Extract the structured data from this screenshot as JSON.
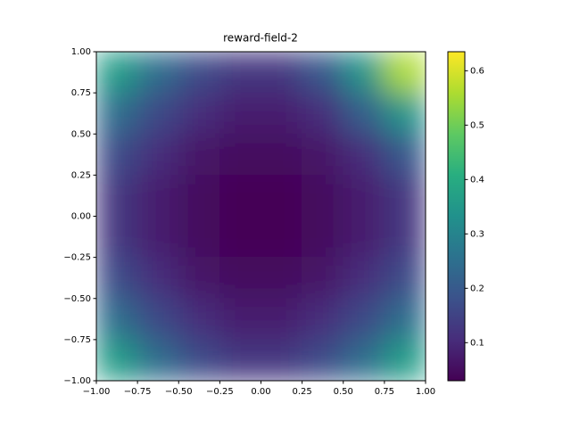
{
  "chart_data": {
    "type": "heatmap",
    "title": "reward-field-2",
    "x": [
      -0.875,
      -0.625,
      -0.375,
      -0.125,
      0.125,
      0.375,
      0.625,
      0.875
    ],
    "y": [
      0.875,
      0.625,
      0.375,
      0.125,
      -0.125,
      -0.375,
      -0.625,
      -0.875
    ],
    "values": [
      [
        0.361,
        0.244,
        0.166,
        0.127,
        0.127,
        0.196,
        0.344,
        0.561
      ],
      [
        0.244,
        0.162,
        0.108,
        0.081,
        0.081,
        0.108,
        0.212,
        0.344
      ],
      [
        0.166,
        0.108,
        0.069,
        0.049,
        0.049,
        0.069,
        0.108,
        0.196
      ],
      [
        0.127,
        0.081,
        0.049,
        0.034,
        0.034,
        0.049,
        0.081,
        0.127
      ],
      [
        0.127,
        0.081,
        0.049,
        0.034,
        0.034,
        0.049,
        0.081,
        0.127
      ],
      [
        0.166,
        0.108,
        0.069,
        0.049,
        0.049,
        0.069,
        0.108,
        0.166
      ],
      [
        0.244,
        0.162,
        0.108,
        0.081,
        0.081,
        0.108,
        0.162,
        0.244
      ],
      [
        0.361,
        0.244,
        0.166,
        0.127,
        0.127,
        0.166,
        0.244,
        0.361
      ]
    ],
    "colormap": "viridis",
    "clim": [
      0.03,
      0.635
    ],
    "xlim": [
      -1,
      1
    ],
    "ylim": [
      -1,
      1
    ],
    "xticks": [
      {
        "value": -1,
        "label": "−1.00"
      },
      {
        "value": -0.75,
        "label": "−0.75"
      },
      {
        "value": -0.5,
        "label": "−0.50"
      },
      {
        "value": -0.25,
        "label": "−0.25"
      },
      {
        "value": 0,
        "label": "0.00"
      },
      {
        "value": 0.25,
        "label": "0.25"
      },
      {
        "value": 0.5,
        "label": "0.50"
      },
      {
        "value": 0.75,
        "label": "0.75"
      },
      {
        "value": 1,
        "label": "1.00"
      }
    ],
    "yticks": [
      {
        "value": -1,
        "label": "−1.00"
      },
      {
        "value": -0.75,
        "label": "−0.75"
      },
      {
        "value": -0.5,
        "label": "−0.50"
      },
      {
        "value": -0.25,
        "label": "−0.25"
      },
      {
        "value": 0,
        "label": "0.00"
      },
      {
        "value": 0.25,
        "label": "0.25"
      },
      {
        "value": 0.5,
        "label": "0.50"
      },
      {
        "value": 0.75,
        "label": "0.75"
      },
      {
        "value": 1,
        "label": "1.00"
      }
    ],
    "cbar_ticks": [
      0.1,
      0.2,
      0.3,
      0.4,
      0.5,
      0.6
    ]
  }
}
